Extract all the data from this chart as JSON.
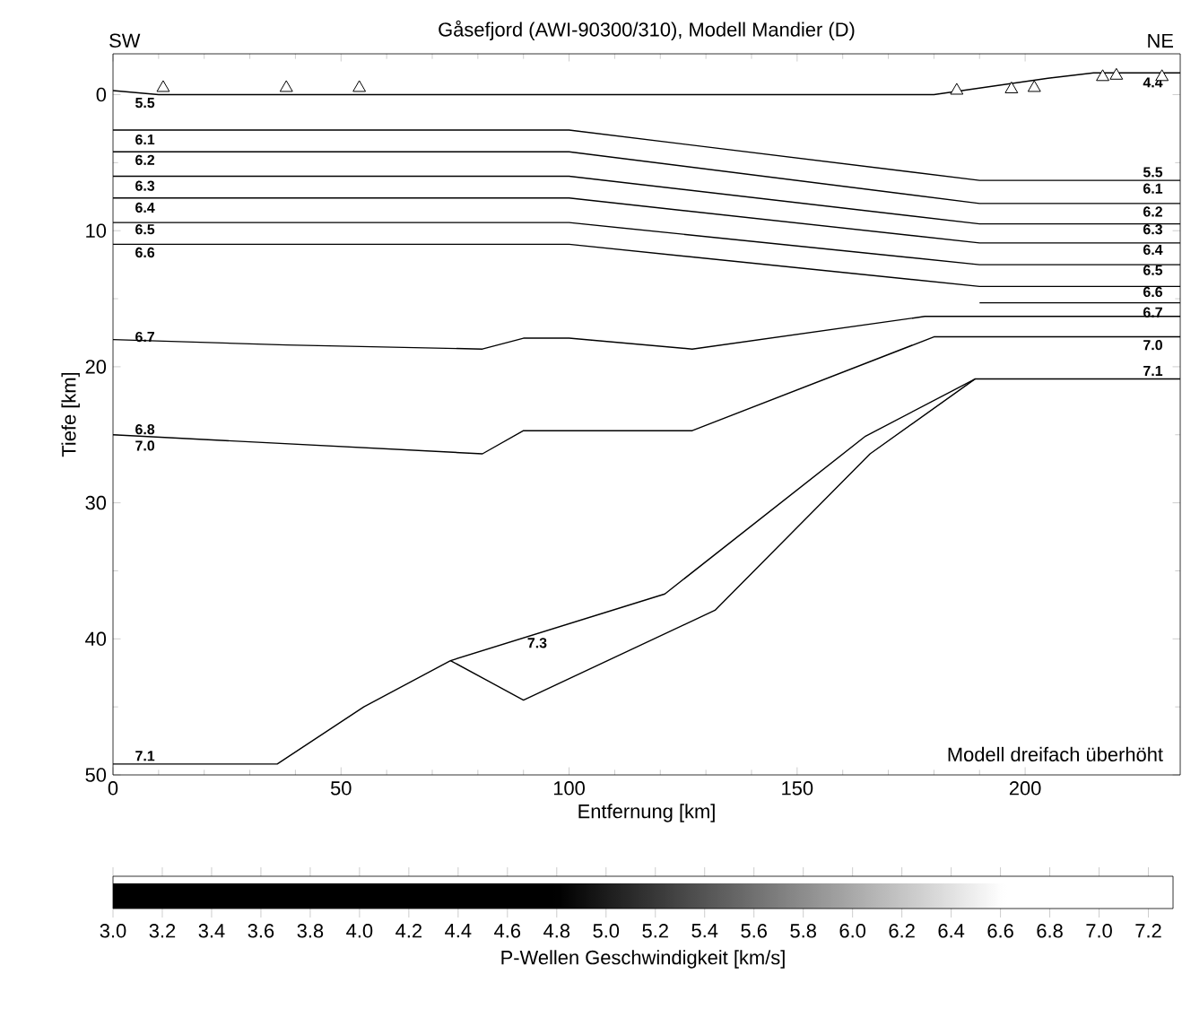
{
  "chart_data": {
    "type": "line",
    "title": "Gåsefjord (AWI-90300/310), Modell Mandier (D)",
    "xlabel": "Entfernung [km]",
    "ylabel": "Tiefe [km]",
    "clabel": "P-Wellen Geschwindigkeit [km/s]",
    "xlim": [
      0,
      234
    ],
    "ylim": [
      50,
      -3
    ],
    "xticks": [
      0,
      50,
      100,
      150,
      200
    ],
    "yticks": [
      0,
      10,
      20,
      30,
      40,
      50
    ],
    "clim": [
      3.0,
      7.3
    ],
    "cticks": [
      {
        "value": 3.0,
        "label": "3.0"
      },
      {
        "value": 3.2,
        "label": "3.2"
      },
      {
        "value": 3.4,
        "label": "3.4"
      },
      {
        "value": 3.6,
        "label": "3.6"
      },
      {
        "value": 3.8,
        "label": "3.8"
      },
      {
        "value": 4.0,
        "label": "4.0"
      },
      {
        "value": 4.2,
        "label": "4.2"
      },
      {
        "value": 4.4,
        "label": "4.4"
      },
      {
        "value": 4.6,
        "label": "4.6"
      },
      {
        "value": 4.8,
        "label": "4.8"
      },
      {
        "value": 5.0,
        "label": "5.0"
      },
      {
        "value": 5.2,
        "label": "5.2"
      },
      {
        "value": 5.4,
        "label": "5.4"
      },
      {
        "value": 5.6,
        "label": "5.6"
      },
      {
        "value": 5.8,
        "label": "5.8"
      },
      {
        "value": 6.0,
        "label": "6.0"
      },
      {
        "value": 6.2,
        "label": "6.2"
      },
      {
        "value": 6.4,
        "label": "6.4"
      },
      {
        "value": 6.6,
        "label": "6.6"
      },
      {
        "value": 6.8,
        "label": "6.8"
      },
      {
        "value": 7.0,
        "label": "7.0"
      },
      {
        "value": 7.2,
        "label": "7.2"
      }
    ],
    "series": [
      {
        "color": "#000000",
        "x": [
          0,
          10,
          100,
          180,
          205,
          215,
          234
        ],
        "values": [
          -0.3,
          0,
          0,
          0,
          -1.2,
          -1.6,
          -1.6
        ]
      },
      {
        "color": "#000000",
        "x": [
          0,
          100,
          190,
          234
        ],
        "values": [
          2.6,
          2.6,
          6.3,
          6.3
        ]
      },
      {
        "color": "#000000",
        "x": [
          0,
          100,
          190,
          234
        ],
        "values": [
          4.2,
          4.2,
          8.0,
          8.0
        ]
      },
      {
        "color": "#000000",
        "x": [
          0,
          100,
          190,
          234
        ],
        "values": [
          6.0,
          6.0,
          9.5,
          9.5
        ]
      },
      {
        "color": "#000000",
        "x": [
          0,
          100,
          190,
          234
        ],
        "values": [
          7.6,
          7.6,
          10.9,
          10.9
        ]
      },
      {
        "color": "#000000",
        "x": [
          0,
          100,
          190,
          234
        ],
        "values": [
          9.4,
          9.4,
          12.5,
          12.5
        ]
      },
      {
        "color": "#000000",
        "x": [
          0,
          100,
          190,
          234
        ],
        "values": [
          11.0,
          11.0,
          14.1,
          14.1
        ]
      },
      {
        "color": "#000000",
        "x": [
          190,
          234
        ],
        "values": [
          15.3,
          15.3
        ]
      },
      {
        "color": "#000000",
        "x": [
          0,
          38,
          81,
          90,
          100,
          127,
          178,
          234
        ],
        "values": [
          18.0,
          18.4,
          18.7,
          17.9,
          17.9,
          18.7,
          16.3,
          16.3
        ]
      },
      {
        "color": "#000000",
        "x": [
          0,
          81,
          90,
          127,
          180,
          234
        ],
        "values": [
          25.0,
          26.4,
          24.7,
          24.7,
          17.8,
          17.8
        ]
      },
      {
        "color": "#000000",
        "x": [
          0,
          36,
          55,
          74,
          121,
          165,
          189,
          234
        ],
        "values": [
          49.2,
          49.2,
          45.0,
          41.6,
          36.7,
          25.1,
          20.9,
          20.9
        ]
      },
      {
        "color": "#000000",
        "x": [
          74,
          90,
          132,
          166,
          189
        ],
        "values": [
          41.6,
          44.5,
          37.9,
          26.4,
          20.9
        ]
      },
      {
        "type": "scatter",
        "marker": "triangle",
        "color": "#ffffff",
        "x": [
          11,
          38,
          54,
          185,
          197,
          202,
          217,
          220,
          230
        ],
        "values": [
          -0.5,
          -0.5,
          -0.5,
          -0.3,
          -0.4,
          -0.5,
          -1.3,
          -1.4,
          -1.3
        ]
      }
    ],
    "annotations": [
      "SW",
      "NE",
      "Modell dreifach überhöht",
      {
        "text": "5.5",
        "x": 7,
        "y": 0.6
      },
      {
        "text": "6.1",
        "x": 7,
        "y": 3.3
      },
      {
        "text": "6.2",
        "x": 7,
        "y": 4.8
      },
      {
        "text": "6.3",
        "x": 7,
        "y": 6.7
      },
      {
        "text": "6.4",
        "x": 7,
        "y": 8.3
      },
      {
        "text": "6.5",
        "x": 7,
        "y": 9.9
      },
      {
        "text": "6.6",
        "x": 7,
        "y": 11.6
      },
      {
        "text": "6.7",
        "x": 7,
        "y": 17.8
      },
      {
        "text": "6.8",
        "x": 7,
        "y": 24.6
      },
      {
        "text": "7.0",
        "x": 7,
        "y": 25.8
      },
      {
        "text": "7.1",
        "x": 7,
        "y": 48.6
      },
      {
        "text": "7.3",
        "x": 93,
        "y": 40.3
      },
      {
        "text": "4.4",
        "x": 228,
        "y": -0.9
      },
      {
        "text": "5.5",
        "x": 228,
        "y": 5.7
      },
      {
        "text": "6.1",
        "x": 228,
        "y": 6.9
      },
      {
        "text": "6.2",
        "x": 228,
        "y": 8.6
      },
      {
        "text": "6.3",
        "x": 228,
        "y": 9.9
      },
      {
        "text": "6.4",
        "x": 228,
        "y": 11.4
      },
      {
        "text": "6.5",
        "x": 228,
        "y": 12.9
      },
      {
        "text": "6.6",
        "x": 228,
        "y": 14.5
      },
      {
        "text": "6.7",
        "x": 228,
        "y": 16.0
      },
      {
        "text": "7.0",
        "x": 228,
        "y": 18.4
      },
      {
        "text": "7.1",
        "x": 228,
        "y": 20.3
      }
    ]
  }
}
